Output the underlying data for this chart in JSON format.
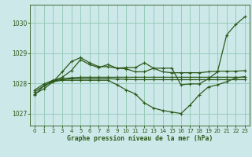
{
  "title": "Graphe pression niveau de la mer (hPa)",
  "bg_color": "#cce8e8",
  "grid_color": "#99ccbb",
  "line_color": "#2d5a1b",
  "xlim": [
    -0.5,
    23.5
  ],
  "ylim": [
    1026.6,
    1030.6
  ],
  "yticks": [
    1027,
    1028,
    1029,
    1030
  ],
  "xticks": [
    0,
    1,
    2,
    3,
    4,
    5,
    6,
    7,
    8,
    9,
    10,
    11,
    12,
    13,
    14,
    15,
    16,
    17,
    18,
    19,
    20,
    21,
    22,
    23
  ],
  "s1_x": [
    0,
    1,
    2,
    3,
    4,
    5,
    6,
    7,
    8,
    9,
    10,
    11,
    12,
    13,
    14,
    15,
    16,
    17,
    18,
    19,
    20,
    21,
    22,
    23
  ],
  "s1_y": [
    1027.72,
    1027.92,
    1028.08,
    1028.12,
    1028.15,
    1028.15,
    1028.15,
    1028.15,
    1028.15,
    1028.14,
    1028.13,
    1028.12,
    1028.12,
    1028.12,
    1028.12,
    1028.12,
    1028.12,
    1028.12,
    1028.12,
    1028.12,
    1028.12,
    1028.12,
    1028.12,
    1028.12
  ],
  "s2_x": [
    0,
    1,
    2,
    3,
    4,
    5,
    6,
    7,
    8,
    9,
    10,
    11,
    12,
    13,
    14,
    15,
    16,
    17,
    18,
    19,
    20,
    21,
    22,
    23
  ],
  "s2_y": [
    1027.78,
    1027.98,
    1028.1,
    1028.15,
    1028.18,
    1028.2,
    1028.2,
    1028.2,
    1028.2,
    1028.2,
    1028.2,
    1028.2,
    1028.2,
    1028.2,
    1028.2,
    1028.2,
    1028.2,
    1028.2,
    1028.2,
    1028.2,
    1028.2,
    1028.2,
    1028.2,
    1028.2
  ],
  "s3_x": [
    0,
    1,
    2,
    3,
    4,
    5,
    6,
    7,
    8,
    9,
    10,
    11,
    12,
    13,
    14,
    15,
    16,
    17,
    18,
    19,
    20,
    21,
    22,
    23
  ],
  "s3_y": [
    1027.65,
    1027.82,
    1028.05,
    1028.38,
    1028.72,
    1028.85,
    1028.68,
    1028.55,
    1028.55,
    1028.5,
    1028.48,
    1028.38,
    1028.38,
    1028.5,
    1028.38,
    1028.35,
    1028.35,
    1028.35,
    1028.35,
    1028.38,
    1028.4,
    1028.4,
    1028.4,
    1028.42
  ],
  "s4_x": [
    2,
    3,
    4,
    5,
    6,
    7,
    8,
    9,
    10,
    11,
    12,
    13,
    14,
    15,
    16,
    17,
    18,
    19,
    20,
    21,
    22,
    23
  ],
  "s4_y": [
    1028.08,
    1028.2,
    1028.42,
    1028.78,
    1028.62,
    1028.52,
    1028.62,
    1028.5,
    1028.52,
    1028.52,
    1028.68,
    1028.5,
    1028.5,
    1028.5,
    1027.95,
    1027.98,
    1027.98,
    1028.15,
    1028.38,
    1029.6,
    1029.95,
    1030.2
  ],
  "s5_x": [
    0,
    1,
    2,
    3,
    4,
    5,
    6,
    7,
    8,
    9,
    10,
    11,
    12,
    13,
    14,
    15,
    16,
    17,
    18,
    19,
    20,
    21,
    22,
    23
  ],
  "s5_y": [
    1027.62,
    1027.92,
    1028.05,
    1028.1,
    1028.1,
    1028.1,
    1028.1,
    1028.1,
    1028.1,
    1027.95,
    1027.78,
    1027.65,
    1027.35,
    1027.18,
    1027.1,
    1027.05,
    1027.0,
    1027.28,
    1027.62,
    1027.88,
    1027.95,
    1028.05,
    1028.18,
    1028.22
  ]
}
